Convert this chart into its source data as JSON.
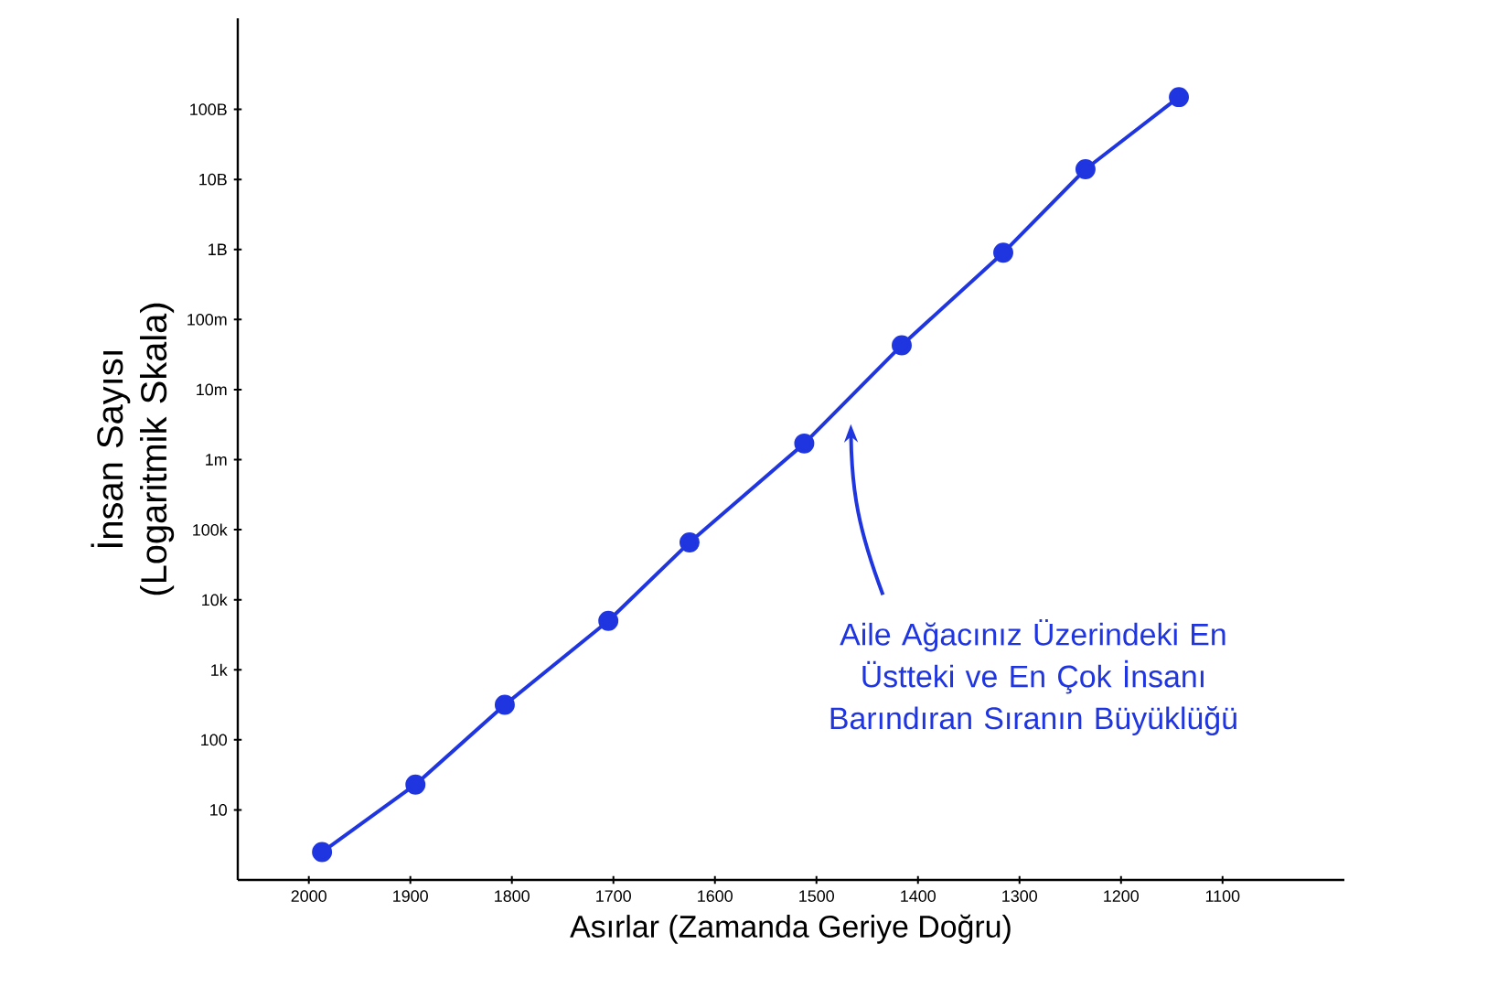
{
  "chart_data": {
    "type": "line",
    "xlabel": "Asırlar (Zamanda Geriye Doğru)",
    "ylabel": "İnsan Sayısı (Logaritmik Skala)",
    "x": [
      1987,
      1895,
      1807,
      1705,
      1625,
      1512,
      1416,
      1316,
      1235,
      1143
    ],
    "series": [
      {
        "color": "#1f35e0",
        "values": [
          2.5,
          23,
          316,
          5000,
          66000,
          1700000,
          43000000,
          900000000,
          14000000000,
          150000000000
        ]
      }
    ],
    "log": "y",
    "marker": "circle",
    "line_style": "solid",
    "xlim": [
      2070,
      980
    ],
    "xticks": [
      2000,
      1900,
      1800,
      1700,
      1600,
      1500,
      1400,
      1300,
      1200,
      1100
    ],
    "ylim": [
      1,
      2000000000000
    ],
    "yticks": [
      10,
      100,
      {
        "value": 1000,
        "label": "1k"
      },
      {
        "value": 10000,
        "label": "10k"
      },
      {
        "value": 100000,
        "label": "100k"
      },
      {
        "value": 1000000,
        "label": "1m"
      },
      {
        "value": 10000000,
        "label": "10m"
      },
      {
        "value": 100000000,
        "label": "100m"
      },
      {
        "value": 1000000000,
        "label": "1B"
      },
      {
        "value": 10000000000,
        "label": "10B"
      },
      {
        "value": 100000000000,
        "label": "100B"
      }
    ],
    "annotations": [
      "Aile Ağacınız Üzerindeki En Üstteki ve En Çok İnsanı Barındıran Sıranın Büyüklüğü"
    ]
  }
}
